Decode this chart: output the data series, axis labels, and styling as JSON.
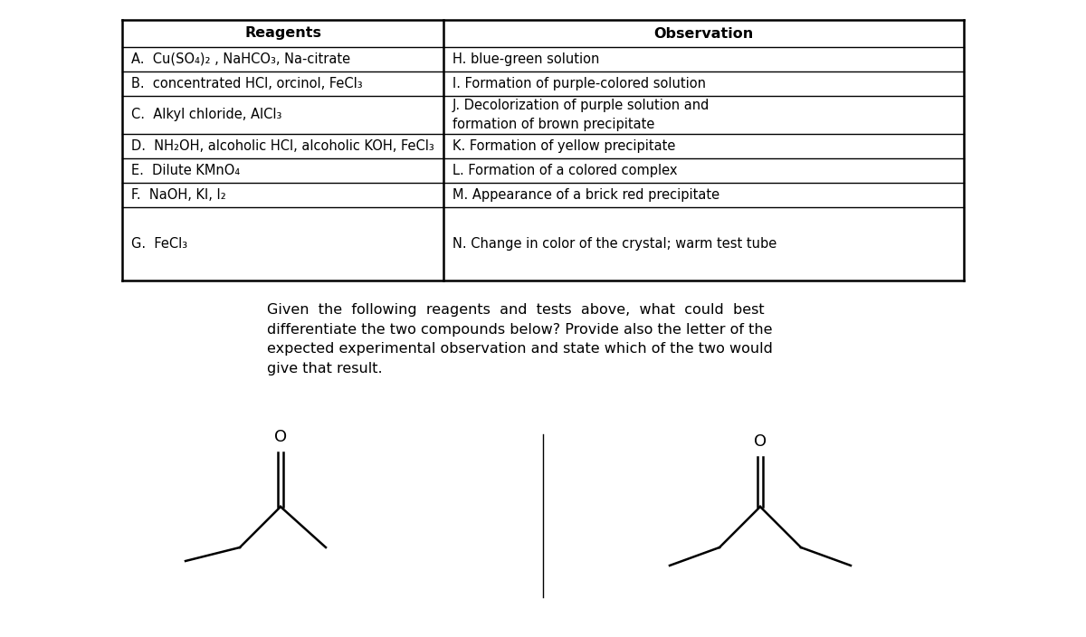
{
  "background_color": "#ffffff",
  "reagents_header": "Reagents",
  "observation_header": "Observation",
  "reagents_rows": [
    "A.  Cu(SO₄)₂ , NaHCO₃, Na-citrate",
    "B.  concentrated HCl, orcinol, FeCl₃",
    "C.  Alkyl chloride, AlCl₃",
    "D.  NH₂OH, alcoholic HCl, alcoholic KOH, FeCl₃",
    "E.  Dilute KMnO₄",
    "F.  NaOH, KI, I₂",
    "G.  FeCl₃"
  ],
  "observation_rows": [
    "H. blue-green solution",
    "I. Formation of purple-colored solution",
    "J. Decolorization of purple solution and\nformation of brown precipitate",
    "K. Formation of yellow precipitate",
    "L. Formation of a colored complex",
    "M. Appearance of a brick red precipitate",
    "N. Change in color of the crystal; warm test tube"
  ],
  "question_text": "Given  the  following  reagents  and  tests  above,  what  could  best\ndifferentiate the two compounds below? Provide also the letter of the\nexpected experimental observation and state which of the two would\ngive that result.",
  "font_size_table": 10.5,
  "font_size_header": 11.5,
  "font_size_question": 11.5,
  "text_color": "#000000",
  "line_color": "#000000",
  "mol_lw": 1.8
}
